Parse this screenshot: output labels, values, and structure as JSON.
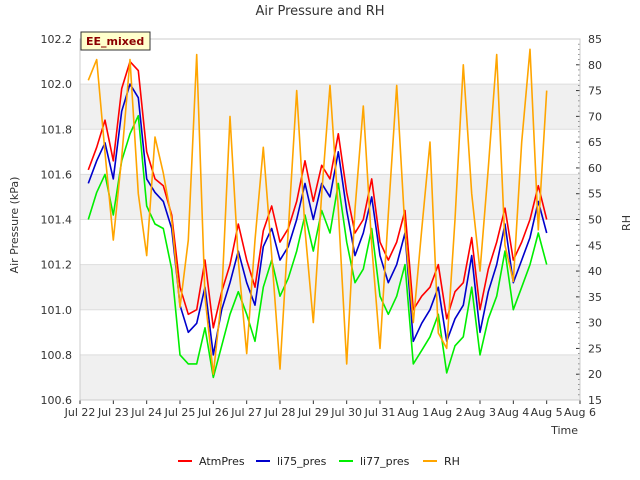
{
  "chart_data": {
    "type": "line",
    "title": "Air Pressure and RH",
    "xlabel": "Time",
    "ylabel": "Air Pressure (kPa)",
    "y2label": "RH",
    "badge": "EE_mixed",
    "xlim": [
      22,
      37
    ],
    "ylim": [
      100.6,
      102.2
    ],
    "y2lim": [
      15,
      85
    ],
    "x_ticks": [
      {
        "v": 22,
        "label": "Jul 22"
      },
      {
        "v": 23,
        "label": "Jul 23"
      },
      {
        "v": 24,
        "label": "Jul 24"
      },
      {
        "v": 25,
        "label": "Jul 25"
      },
      {
        "v": 26,
        "label": "Jul 26"
      },
      {
        "v": 27,
        "label": "Jul 27"
      },
      {
        "v": 28,
        "label": "Jul 28"
      },
      {
        "v": 29,
        "label": "Jul 29"
      },
      {
        "v": 30,
        "label": "Jul 30"
      },
      {
        "v": 31,
        "label": "Jul 31"
      },
      {
        "v": 32,
        "label": "Aug 1"
      },
      {
        "v": 33,
        "label": "Aug 2"
      },
      {
        "v": 34,
        "label": "Aug 3"
      },
      {
        "v": 35,
        "label": "Aug 4"
      },
      {
        "v": 36,
        "label": "Aug 5"
      },
      {
        "v": 37,
        "label": "Aug 6"
      }
    ],
    "y_ticks": [
      100.6,
      100.8,
      101.0,
      101.2,
      101.4,
      101.6,
      101.8,
      102.0,
      102.2
    ],
    "y2_ticks": [
      15,
      20,
      25,
      30,
      35,
      40,
      45,
      50,
      55,
      60,
      65,
      70,
      75,
      80,
      85
    ],
    "grid": true,
    "legend_position": "bottom",
    "x_note": "x values are days (Jul 22 = 22, Aug 1 = 32)",
    "series": [
      {
        "name": "AtmPres",
        "color": "#ff0000",
        "axis": "left",
        "x": [
          22.25,
          22.5,
          22.75,
          23.0,
          23.25,
          23.5,
          23.75,
          24.0,
          24.25,
          24.5,
          24.75,
          25.0,
          25.25,
          25.5,
          25.75,
          26.0,
          26.25,
          26.5,
          26.75,
          27.0,
          27.25,
          27.5,
          27.75,
          28.0,
          28.25,
          28.5,
          28.75,
          29.0,
          29.25,
          29.5,
          29.75,
          30.0,
          30.25,
          30.5,
          30.75,
          31.0,
          31.25,
          31.5,
          31.75,
          32.0,
          32.25,
          32.5,
          32.75,
          33.0,
          33.25,
          33.5,
          33.75,
          34.0,
          34.25,
          34.5,
          34.75,
          35.0,
          35.25,
          35.5,
          35.75,
          36.0
        ],
        "values": [
          101.62,
          101.72,
          101.84,
          101.66,
          101.98,
          102.1,
          102.06,
          101.7,
          101.58,
          101.55,
          101.42,
          101.1,
          100.98,
          101.0,
          101.22,
          100.92,
          101.08,
          101.2,
          101.38,
          101.22,
          101.1,
          101.35,
          101.46,
          101.3,
          101.36,
          101.48,
          101.66,
          101.48,
          101.64,
          101.58,
          101.78,
          101.52,
          101.34,
          101.4,
          101.58,
          101.3,
          101.22,
          101.3,
          101.44,
          101.0,
          101.06,
          101.1,
          101.2,
          100.96,
          101.08,
          101.12,
          101.32,
          101.0,
          101.18,
          101.3,
          101.45,
          101.22,
          101.3,
          101.4,
          101.55,
          101.4
        ]
      },
      {
        "name": "li75_pres",
        "color": "#0000cc",
        "axis": "left",
        "x": [
          22.25,
          22.5,
          22.75,
          23.0,
          23.25,
          23.5,
          23.75,
          24.0,
          24.25,
          24.5,
          24.75,
          25.0,
          25.25,
          25.5,
          25.75,
          26.0,
          26.25,
          26.5,
          26.75,
          27.0,
          27.25,
          27.5,
          27.75,
          28.0,
          28.25,
          28.5,
          28.75,
          29.0,
          29.25,
          29.5,
          29.75,
          30.0,
          30.25,
          30.5,
          30.75,
          31.0,
          31.25,
          31.5,
          31.75,
          32.0,
          32.25,
          32.5,
          32.75,
          33.0,
          33.25,
          33.5,
          33.75,
          34.0,
          34.25,
          34.5,
          34.75,
          35.0,
          35.25,
          35.5,
          35.75,
          36.0
        ],
        "values": [
          101.56,
          101.66,
          101.74,
          101.58,
          101.88,
          102.0,
          101.94,
          101.58,
          101.52,
          101.48,
          101.36,
          101.02,
          100.9,
          100.94,
          101.1,
          100.8,
          101.0,
          101.12,
          101.26,
          101.12,
          101.02,
          101.28,
          101.36,
          101.22,
          101.28,
          101.4,
          101.56,
          101.4,
          101.56,
          101.5,
          101.7,
          101.44,
          101.24,
          101.34,
          101.5,
          101.24,
          101.12,
          101.2,
          101.34,
          100.86,
          100.94,
          101.0,
          101.1,
          100.86,
          100.96,
          101.02,
          101.24,
          100.9,
          101.08,
          101.2,
          101.38,
          101.12,
          101.22,
          101.32,
          101.48,
          101.34
        ]
      },
      {
        "name": "li77_pres",
        "color": "#00ee00",
        "axis": "left",
        "x": [
          22.25,
          22.5,
          22.75,
          23.0,
          23.25,
          23.5,
          23.75,
          24.0,
          24.25,
          24.5,
          24.75,
          25.0,
          25.25,
          25.5,
          25.75,
          26.0,
          26.25,
          26.5,
          26.75,
          27.0,
          27.25,
          27.5,
          27.75,
          28.0,
          28.25,
          28.5,
          28.75,
          29.0,
          29.25,
          29.5,
          29.75,
          30.0,
          30.25,
          30.5,
          30.75,
          31.0,
          31.25,
          31.5,
          31.75,
          32.0,
          32.25,
          32.5,
          32.75,
          33.0,
          33.25,
          33.5,
          33.75,
          34.0,
          34.25,
          34.5,
          34.75,
          35.0,
          35.25,
          35.5,
          35.75,
          36.0
        ],
        "values": [
          101.4,
          101.52,
          101.6,
          101.42,
          101.66,
          101.78,
          101.86,
          101.46,
          101.38,
          101.36,
          101.18,
          100.8,
          100.76,
          100.76,
          100.92,
          100.7,
          100.84,
          100.98,
          101.08,
          100.98,
          100.86,
          101.1,
          101.22,
          101.06,
          101.14,
          101.26,
          101.42,
          101.26,
          101.44,
          101.34,
          101.56,
          101.3,
          101.12,
          101.18,
          101.36,
          101.06,
          100.98,
          101.06,
          101.2,
          100.76,
          100.82,
          100.88,
          100.98,
          100.72,
          100.84,
          100.88,
          101.1,
          100.8,
          100.96,
          101.06,
          101.26,
          101.0,
          101.1,
          101.2,
          101.34,
          101.2
        ]
      },
      {
        "name": "RH",
        "color": "#ffa500",
        "axis": "right",
        "x": [
          22.25,
          22.5,
          22.75,
          23.0,
          23.25,
          23.5,
          23.75,
          24.0,
          24.25,
          24.5,
          24.75,
          25.0,
          25.25,
          25.5,
          25.75,
          26.0,
          26.25,
          26.5,
          26.75,
          27.0,
          27.25,
          27.5,
          27.75,
          28.0,
          28.25,
          28.5,
          28.75,
          29.0,
          29.25,
          29.5,
          29.75,
          30.0,
          30.25,
          30.5,
          30.75,
          31.0,
          31.25,
          31.5,
          31.75,
          32.0,
          32.25,
          32.5,
          32.75,
          33.0,
          33.25,
          33.5,
          33.75,
          34.0,
          34.25,
          34.5,
          34.75,
          35.0,
          35.25,
          35.5,
          35.75,
          36.0
        ],
        "values": [
          77,
          81,
          63,
          46,
          62,
          81,
          55,
          43,
          66,
          59,
          50,
          33,
          46,
          82,
          35,
          20,
          35,
          70,
          42,
          24,
          46,
          64,
          43,
          21,
          48,
          75,
          48,
          30,
          55,
          76,
          52,
          22,
          52,
          72,
          45,
          25,
          51,
          76,
          48,
          30,
          48,
          65,
          28,
          25,
          50,
          80,
          55,
          40,
          60,
          82,
          45,
          38,
          65,
          83,
          48,
          75
        ]
      }
    ]
  }
}
